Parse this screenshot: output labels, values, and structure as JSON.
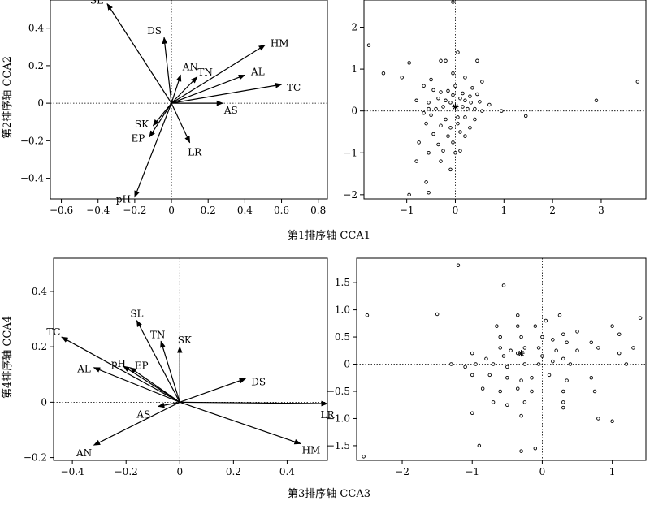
{
  "shared_labels": {
    "xlabel_top": "第1排序轴 CCA1",
    "ylabel_top": "第2排序轴 CCA2",
    "xlabel_bottom": "第3排序轴 CCA3",
    "ylabel_bottom": "第4排序轴 CCA4"
  },
  "chart_data": [
    {
      "id": "tl",
      "type": "biplot-arrows",
      "xlabel": "第1排序轴 CCA1",
      "ylabel": "第2排序轴 CCA2",
      "xlim": [
        -0.66,
        0.85
      ],
      "ylim": [
        -0.51,
        0.55
      ],
      "xticks": [
        -0.6,
        -0.4,
        -0.2,
        0,
        0.2,
        0.4,
        0.6,
        0.8
      ],
      "xtick_labels": [
        "−0.6",
        "−0.4",
        "−0.2",
        "0",
        "0.2",
        "0.4",
        "0.6",
        "0.8"
      ],
      "yticks": [
        -0.4,
        -0.2,
        0,
        0.2,
        0.4
      ],
      "ytick_labels": [
        "−0.4",
        "−0.2",
        "0",
        "0.2",
        "0.4"
      ],
      "arrows": [
        {
          "name": "SL",
          "x": -0.35,
          "y": 0.53
        },
        {
          "name": "DS",
          "x": -0.04,
          "y": 0.35
        },
        {
          "name": "HM",
          "x": 0.51,
          "y": 0.31
        },
        {
          "name": "AN",
          "x": 0.05,
          "y": 0.15
        },
        {
          "name": "TN",
          "x": 0.14,
          "y": 0.14
        },
        {
          "name": "AL",
          "x": 0.4,
          "y": 0.15
        },
        {
          "name": "TC",
          "x": 0.6,
          "y": 0.1
        },
        {
          "name": "AS",
          "x": 0.28,
          "y": 0.0
        },
        {
          "name": "SK",
          "x": -0.1,
          "y": -0.12
        },
        {
          "name": "EP",
          "x": -0.12,
          "y": -0.18
        },
        {
          "name": "LR",
          "x": 0.1,
          "y": -0.21
        },
        {
          "name": "pH",
          "x": -0.2,
          "y": -0.5
        }
      ]
    },
    {
      "id": "tr",
      "type": "scatter",
      "xlim": [
        -1.88,
        3.92
      ],
      "ylim": [
        -2.1,
        2.65
      ],
      "xticks": [
        -1,
        0,
        1,
        2,
        3
      ],
      "xtick_labels": [
        "−1",
        "0",
        "1",
        "2",
        "3"
      ],
      "yticks": [
        -2,
        -1,
        0,
        1,
        2
      ],
      "ytick_labels": [
        "−2",
        "−1",
        "0",
        "1",
        "2"
      ],
      "centroid": {
        "x": 0.0,
        "y": 0.1
      },
      "points": [
        [
          -0.05,
          2.6
        ],
        [
          -1.78,
          1.57
        ],
        [
          -1.48,
          0.9
        ],
        [
          -0.95,
          1.15
        ],
        [
          -0.3,
          1.2
        ],
        [
          -0.2,
          1.2
        ],
        [
          0.05,
          1.4
        ],
        [
          0.45,
          1.2
        ],
        [
          -1.1,
          0.8
        ],
        [
          -0.5,
          0.75
        ],
        [
          0.2,
          0.8
        ],
        [
          0.55,
          0.7
        ],
        [
          -0.65,
          0.6
        ],
        [
          0.0,
          0.6
        ],
        [
          0.35,
          0.55
        ],
        [
          -0.45,
          0.5
        ],
        [
          -0.3,
          0.45
        ],
        [
          -0.15,
          0.48
        ],
        [
          -0.05,
          0.38
        ],
        [
          0.15,
          0.42
        ],
        [
          0.3,
          0.35
        ],
        [
          0.45,
          0.4
        ],
        [
          -0.8,
          0.25
        ],
        [
          -0.55,
          0.2
        ],
        [
          -0.35,
          0.3
        ],
        [
          -0.2,
          0.25
        ],
        [
          -0.1,
          0.2
        ],
        [
          0.1,
          0.3
        ],
        [
          0.2,
          0.25
        ],
        [
          0.32,
          0.2
        ],
        [
          0.5,
          0.22
        ],
        [
          0.4,
          0.05
        ],
        [
          -0.55,
          0.05
        ],
        [
          -0.4,
          0.05
        ],
        [
          -0.25,
          0.1
        ],
        [
          0.15,
          0.1
        ],
        [
          0.25,
          0.05
        ],
        [
          0.55,
          0.0
        ],
        [
          0.95,
          0.0
        ],
        [
          -0.65,
          -0.05
        ],
        [
          -0.5,
          -0.1
        ],
        [
          -0.2,
          -0.2
        ],
        [
          0.05,
          -0.15
        ],
        [
          0.2,
          -0.15
        ],
        [
          0.4,
          -0.2
        ],
        [
          1.45,
          -0.12
        ],
        [
          -0.6,
          -0.3
        ],
        [
          -0.3,
          -0.35
        ],
        [
          -0.1,
          -0.4
        ],
        [
          0.05,
          -0.3
        ],
        [
          0.3,
          -0.4
        ],
        [
          -0.45,
          -0.55
        ],
        [
          -0.15,
          -0.6
        ],
        [
          0.1,
          -0.5
        ],
        [
          0.2,
          -0.6
        ],
        [
          -0.75,
          -0.75
        ],
        [
          -0.35,
          -0.8
        ],
        [
          -0.05,
          -0.75
        ],
        [
          -0.55,
          -1.0
        ],
        [
          -0.25,
          -0.95
        ],
        [
          0.0,
          -1.0
        ],
        [
          0.1,
          -0.95
        ],
        [
          -0.3,
          -1.2
        ],
        [
          -0.8,
          -1.2
        ],
        [
          -0.1,
          -1.4
        ],
        [
          -0.6,
          -1.7
        ],
        [
          -0.55,
          -1.95
        ],
        [
          -0.95,
          -2.0
        ],
        [
          2.9,
          0.25
        ],
        [
          3.75,
          0.7
        ],
        [
          0.7,
          0.15
        ],
        [
          -0.05,
          0.9
        ]
      ]
    },
    {
      "id": "bl",
      "type": "biplot-arrows",
      "xlabel": "第3排序轴 CCA3",
      "ylabel": "第4排序轴 CCA4",
      "xlim": [
        -0.47,
        0.55
      ],
      "ylim": [
        -0.21,
        0.52
      ],
      "xticks": [
        -0.4,
        -0.2,
        0,
        0.2,
        0.4
      ],
      "xtick_labels": [
        "−0.4",
        "−0.2",
        "0",
        "0.2",
        "0.4"
      ],
      "yticks": [
        -0.2,
        0,
        0.2,
        0.4
      ],
      "ytick_labels": [
        "−0.2",
        "0",
        "0.2",
        "0.4"
      ],
      "arrows": [
        {
          "name": "TC",
          "x": -0.44,
          "y": 0.235
        },
        {
          "name": "SL",
          "x": -0.16,
          "y": 0.295
        },
        {
          "name": "TN",
          "x": -0.07,
          "y": 0.22
        },
        {
          "name": "SK",
          "x": 0.0,
          "y": 0.2
        },
        {
          "name": "pH",
          "x": -0.21,
          "y": 0.13
        },
        {
          "name": "EP",
          "x": -0.185,
          "y": 0.125
        },
        {
          "name": "AL",
          "x": -0.32,
          "y": 0.125
        },
        {
          "name": "DS",
          "x": 0.245,
          "y": 0.085
        },
        {
          "name": "LR",
          "x": 0.55,
          "y": -0.005
        },
        {
          "name": "AS",
          "x": -0.08,
          "y": -0.015
        },
        {
          "name": "HM",
          "x": 0.45,
          "y": -0.15
        },
        {
          "name": "AN",
          "x": -0.32,
          "y": -0.155
        }
      ]
    },
    {
      "id": "br",
      "type": "scatter",
      "xlim": [
        -2.65,
        1.48
      ],
      "ylim": [
        -1.77,
        1.95
      ],
      "xticks": [
        -2,
        -1,
        0,
        1
      ],
      "xtick_labels": [
        "−2",
        "−1",
        "0",
        "1"
      ],
      "yticks": [
        -1.5,
        -1.0,
        -0.5,
        0,
        0.5,
        1.0,
        1.5
      ],
      "ytick_labels": [
        "−1.5",
        "−1.0",
        "−0.5",
        "0",
        "0.5",
        "1.0",
        "1.5"
      ],
      "centroid": {
        "x": -0.3,
        "y": 0.2
      },
      "points": [
        [
          -1.2,
          1.82
        ],
        [
          -0.55,
          1.45
        ],
        [
          -2.5,
          0.9
        ],
        [
          -1.5,
          0.92
        ],
        [
          -0.35,
          0.9
        ],
        [
          0.25,
          0.9
        ],
        [
          1.4,
          0.85
        ],
        [
          -0.65,
          0.7
        ],
        [
          -0.35,
          0.7
        ],
        [
          -0.1,
          0.7
        ],
        [
          0.05,
          0.8
        ],
        [
          0.3,
          0.55
        ],
        [
          0.5,
          0.6
        ],
        [
          1.0,
          0.7
        ],
        [
          1.1,
          0.55
        ],
        [
          -0.6,
          0.5
        ],
        [
          -0.3,
          0.5
        ],
        [
          0.0,
          0.5
        ],
        [
          0.15,
          0.45
        ],
        [
          0.35,
          0.4
        ],
        [
          0.7,
          0.4
        ],
        [
          -0.6,
          0.3
        ],
        [
          -0.45,
          0.25
        ],
        [
          -0.25,
          0.3
        ],
        [
          -0.05,
          0.3
        ],
        [
          0.2,
          0.25
        ],
        [
          0.5,
          0.25
        ],
        [
          0.8,
          0.3
        ],
        [
          1.1,
          0.2
        ],
        [
          1.3,
          0.3
        ],
        [
          -1.0,
          0.2
        ],
        [
          -0.8,
          0.1
        ],
        [
          -0.55,
          0.15
        ],
        [
          -0.35,
          0.2
        ],
        [
          0.0,
          0.15
        ],
        [
          0.3,
          0.1
        ],
        [
          -1.3,
          0.0
        ],
        [
          -1.1,
          -0.05
        ],
        [
          -0.95,
          0.0
        ],
        [
          -0.7,
          0.0
        ],
        [
          -0.5,
          -0.05
        ],
        [
          -0.25,
          0.0
        ],
        [
          -0.05,
          0.0
        ],
        [
          0.15,
          0.05
        ],
        [
          0.4,
          0.0
        ],
        [
          1.2,
          0.0
        ],
        [
          -1.0,
          -0.2
        ],
        [
          -0.75,
          -0.2
        ],
        [
          -0.5,
          -0.25
        ],
        [
          -0.3,
          -0.3
        ],
        [
          -0.15,
          -0.25
        ],
        [
          0.1,
          -0.2
        ],
        [
          0.35,
          -0.3
        ],
        [
          0.7,
          -0.25
        ],
        [
          -0.85,
          -0.45
        ],
        [
          -0.6,
          -0.5
        ],
        [
          -0.35,
          -0.45
        ],
        [
          -0.15,
          -0.5
        ],
        [
          0.3,
          -0.5
        ],
        [
          0.75,
          -0.5
        ],
        [
          -0.7,
          -0.7
        ],
        [
          -0.5,
          -0.75
        ],
        [
          -0.25,
          -0.7
        ],
        [
          0.3,
          -0.7
        ],
        [
          0.3,
          -0.8
        ],
        [
          0.8,
          -1.0
        ],
        [
          1.0,
          -1.05
        ],
        [
          -1.0,
          -0.9
        ],
        [
          -0.3,
          -0.95
        ],
        [
          -0.9,
          -1.5
        ],
        [
          -0.3,
          -1.6
        ],
        [
          -0.1,
          -1.55
        ],
        [
          -2.55,
          -1.7
        ]
      ]
    }
  ]
}
